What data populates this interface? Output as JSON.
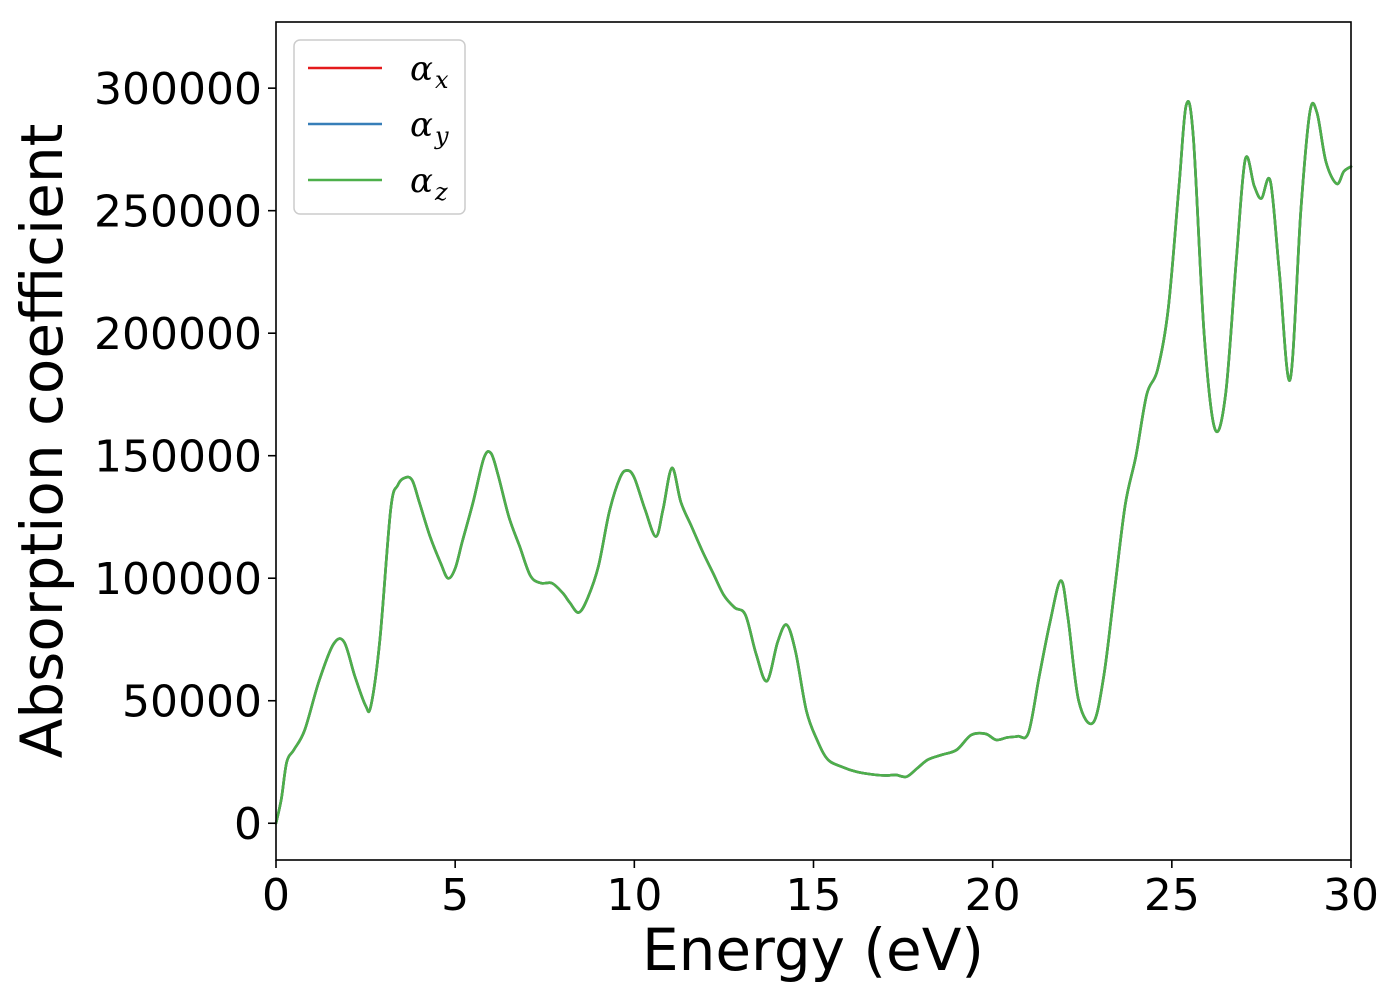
{
  "chart_data": {
    "type": "line",
    "xlabel": "Energy (eV)",
    "ylabel": "Absorption coefficient",
    "xlim": [
      0,
      30
    ],
    "ylim": [
      -15000,
      327000
    ],
    "xticks": [
      0,
      5,
      10,
      15,
      20,
      25,
      30
    ],
    "xtick_labels": [
      "0",
      "5",
      "10",
      "15",
      "20",
      "25",
      "30"
    ],
    "yticks": [
      0,
      50000,
      100000,
      150000,
      200000,
      250000,
      300000
    ],
    "ytick_labels": [
      "0",
      "50000",
      "100000",
      "150000",
      "200000",
      "250000",
      "300000"
    ],
    "grid": false,
    "legend_position": "top-left",
    "colors": {
      "alpha_x": "#e41a1c",
      "alpha_y": "#377eb8",
      "alpha_z": "#4daf4a",
      "frame": "#000000",
      "legend_border": "#cccccc"
    },
    "series": [
      {
        "name": "α",
        "subscript": "x",
        "color": "#e41a1c"
      },
      {
        "name": "α",
        "subscript": "y",
        "color": "#377eb8"
      },
      {
        "name": "α",
        "subscript": "z",
        "color": "#4daf4a"
      }
    ],
    "x": [
      0,
      0.15,
      0.3,
      0.5,
      0.8,
      1.2,
      1.6,
      1.9,
      2.2,
      2.5,
      2.65,
      2.9,
      3.2,
      3.4,
      3.6,
      3.8,
      4.0,
      4.3,
      4.6,
      4.8,
      5.0,
      5.2,
      5.5,
      5.8,
      6.0,
      6.2,
      6.5,
      6.8,
      7.1,
      7.4,
      7.7,
      8.0,
      8.2,
      8.45,
      8.7,
      9.0,
      9.3,
      9.6,
      9.8,
      10.0,
      10.3,
      10.6,
      10.8,
      11.05,
      11.3,
      11.6,
      11.9,
      12.2,
      12.5,
      12.8,
      13.1,
      13.4,
      13.7,
      14.0,
      14.25,
      14.5,
      14.8,
      15.1,
      15.4,
      15.8,
      16.2,
      16.6,
      17.0,
      17.3,
      17.6,
      17.9,
      18.2,
      18.6,
      19.0,
      19.4,
      19.8,
      20.1,
      20.4,
      20.7,
      21.0,
      21.3,
      21.6,
      21.9,
      22.1,
      22.4,
      22.8,
      23.1,
      23.4,
      23.7,
      24.0,
      24.3,
      24.6,
      24.9,
      25.2,
      25.4,
      25.6,
      25.9,
      26.2,
      26.5,
      26.8,
      27.05,
      27.3,
      27.5,
      27.75,
      28.0,
      28.3,
      28.6,
      28.85,
      29.05,
      29.3,
      29.6,
      29.8,
      30.0
    ],
    "values": [
      0,
      10000,
      25000,
      30000,
      38000,
      58000,
      73000,
      74000,
      60000,
      48000,
      48000,
      75000,
      128000,
      138000,
      141000,
      140000,
      131000,
      117000,
      106000,
      100000,
      104000,
      115000,
      131000,
      149000,
      151000,
      142000,
      125000,
      113000,
      101000,
      98000,
      98000,
      94000,
      90000,
      86000,
      92000,
      105000,
      127000,
      141000,
      144000,
      141000,
      128000,
      117000,
      128000,
      145000,
      131000,
      121000,
      111000,
      102000,
      93000,
      88000,
      85000,
      69000,
      58000,
      74000,
      81000,
      70000,
      46000,
      34000,
      26000,
      23000,
      21000,
      20000,
      19500,
      19700,
      19000,
      22500,
      26000,
      28000,
      30000,
      36000,
      36500,
      34000,
      35000,
      35500,
      37000,
      60000,
      82000,
      99000,
      84000,
      50000,
      41000,
      60000,
      95000,
      130000,
      150000,
      175000,
      185000,
      210000,
      260000,
      293000,
      280000,
      200000,
      161000,
      175000,
      230000,
      271000,
      260000,
      255000,
      262000,
      225000,
      181000,
      250000,
      290000,
      290000,
      270000,
      261000,
      266000,
      268000
    ]
  }
}
